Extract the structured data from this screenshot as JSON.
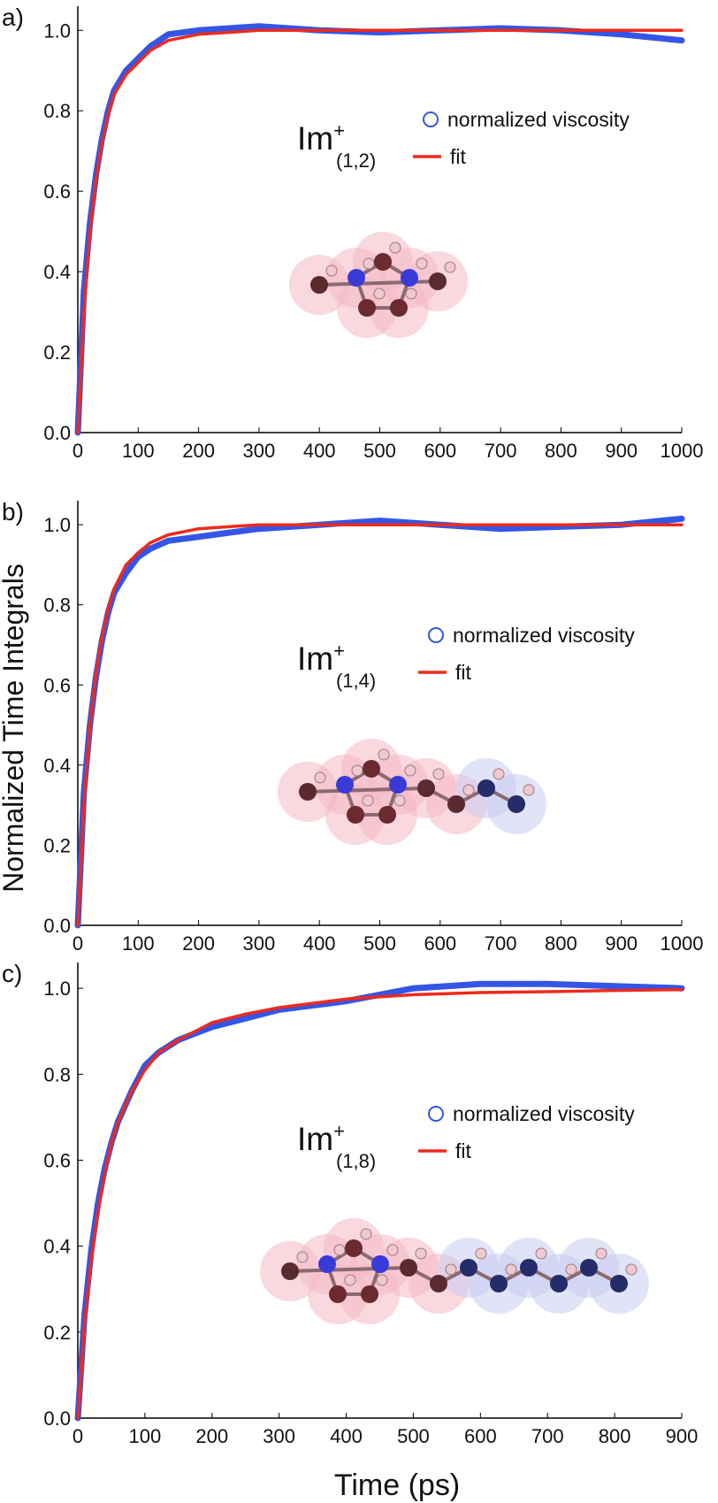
{
  "chart_data": [
    {
      "type": "line",
      "panel_label": "a)",
      "annotation": {
        "text": "Im",
        "superscript": "+",
        "subscript": "(1,2)"
      },
      "x": [
        0,
        10,
        20,
        30,
        40,
        50,
        60,
        80,
        100,
        120,
        150,
        200,
        250,
        300,
        400,
        500,
        600,
        700,
        800,
        900,
        1000
      ],
      "series": [
        {
          "name": "normalized viscosity",
          "color": "#3455e6",
          "marker": "circle",
          "values": [
            0,
            0.35,
            0.52,
            0.64,
            0.73,
            0.8,
            0.85,
            0.9,
            0.93,
            0.96,
            0.99,
            1.0,
            1.005,
            1.01,
            1.0,
            0.995,
            1.0,
            1.005,
            1.0,
            0.99,
            0.975
          ]
        },
        {
          "name": "fit",
          "color": "#ee2a1c",
          "marker": "line",
          "values": [
            0,
            0.3,
            0.5,
            0.63,
            0.72,
            0.79,
            0.84,
            0.89,
            0.92,
            0.95,
            0.975,
            0.99,
            0.995,
            1,
            1,
            1,
            1,
            1,
            1,
            1,
            1
          ]
        }
      ],
      "xlim": [
        0,
        1000
      ],
      "xticks": [
        0,
        100,
        200,
        300,
        400,
        500,
        600,
        700,
        800,
        900,
        1000
      ],
      "ylim": [
        0,
        1.06
      ],
      "yticks": [
        {
          "value": 0,
          "label": "0.0"
        },
        0.2,
        0.4,
        0.6,
        0.8,
        {
          "value": 1,
          "label": "1.0"
        }
      ]
    },
    {
      "type": "line",
      "panel_label": "b)",
      "ylabel": "Normalized Time Integrals",
      "annotation": {
        "text": "Im",
        "superscript": "+",
        "subscript": "(1,4)"
      },
      "x": [
        0,
        10,
        20,
        30,
        40,
        50,
        60,
        80,
        100,
        120,
        150,
        200,
        250,
        300,
        400,
        500,
        600,
        700,
        800,
        900,
        1000
      ],
      "series": [
        {
          "name": "normalized viscosity",
          "color": "#3455e6",
          "marker": "circle",
          "values": [
            0,
            0.33,
            0.5,
            0.62,
            0.71,
            0.78,
            0.83,
            0.88,
            0.92,
            0.94,
            0.96,
            0.97,
            0.98,
            0.99,
            1.0,
            1.01,
            1.0,
            0.99,
            0.995,
            1.0,
            1.015
          ]
        },
        {
          "name": "fit",
          "color": "#ee2a1c",
          "marker": "line",
          "values": [
            0,
            0.3,
            0.5,
            0.63,
            0.72,
            0.79,
            0.84,
            0.9,
            0.93,
            0.955,
            0.975,
            0.99,
            0.995,
            1,
            1,
            1,
            1,
            1,
            1,
            1,
            1
          ]
        }
      ],
      "xlim": [
        0,
        1000
      ],
      "xticks": [
        0,
        100,
        200,
        300,
        400,
        500,
        600,
        700,
        800,
        900,
        1000
      ],
      "ylim": [
        0,
        1.06
      ],
      "yticks": [
        {
          "value": 0,
          "label": "0.0"
        },
        0.2,
        0.4,
        0.6,
        0.8,
        {
          "value": 1,
          "label": "1.0"
        }
      ]
    },
    {
      "type": "line",
      "panel_label": "c)",
      "xlabel": "Time (ps)",
      "annotation": {
        "text": "Im",
        "superscript": "+",
        "subscript": "(1,8)"
      },
      "x": [
        0,
        10,
        20,
        30,
        40,
        50,
        60,
        80,
        100,
        120,
        150,
        200,
        250,
        300,
        400,
        500,
        600,
        700,
        800,
        900
      ],
      "series": [
        {
          "name": "normalized viscosity",
          "color": "#3455e6",
          "marker": "circle",
          "values": [
            0,
            0.24,
            0.39,
            0.5,
            0.58,
            0.64,
            0.69,
            0.76,
            0.82,
            0.85,
            0.88,
            0.91,
            0.93,
            0.95,
            0.97,
            1.0,
            1.01,
            1.01,
            1.005,
            1.0
          ]
        },
        {
          "name": "fit",
          "color": "#ee2a1c",
          "marker": "line",
          "values": [
            0,
            0.22,
            0.37,
            0.48,
            0.57,
            0.64,
            0.69,
            0.76,
            0.81,
            0.85,
            0.88,
            0.92,
            0.94,
            0.955,
            0.975,
            0.985,
            0.99,
            0.992,
            0.995,
            0.997
          ]
        }
      ],
      "xlim": [
        0,
        900
      ],
      "xticks": [
        0,
        100,
        200,
        300,
        400,
        500,
        600,
        700,
        800,
        900
      ],
      "ylim": [
        0,
        1.06
      ],
      "yticks": [
        {
          "value": 0,
          "label": "0.0"
        },
        0.2,
        0.4,
        0.6,
        0.8,
        {
          "value": 1,
          "label": "1.0"
        }
      ]
    }
  ]
}
